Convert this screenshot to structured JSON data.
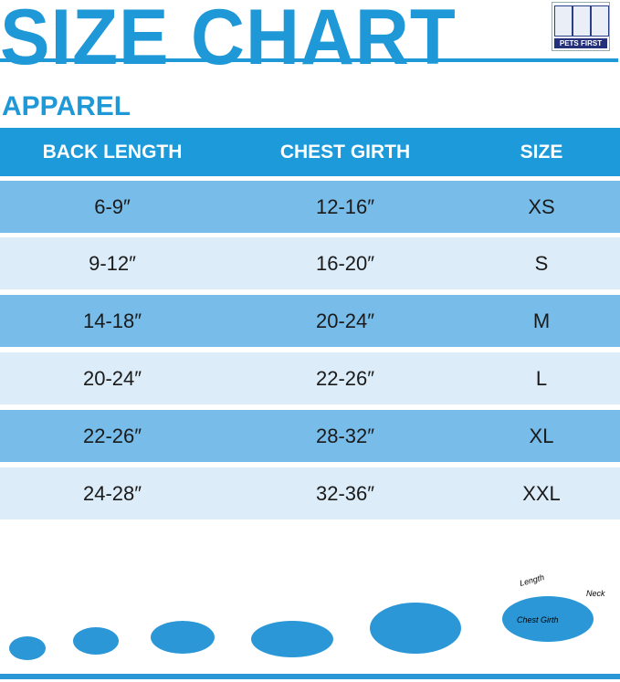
{
  "title": "SIZE CHART",
  "logo": {
    "text": "PETS FIRST"
  },
  "section": "APPAREL",
  "colors": {
    "title": "#1f98d8",
    "header": "#1d9ad9",
    "row_dark": "#78bde9",
    "row_light": "#dcedf9",
    "silhouette": "#2b97d6"
  },
  "table": {
    "headers": [
      "BACK LENGTH",
      "CHEST GIRTH",
      "SIZE"
    ],
    "rows": [
      [
        "6-9″",
        "12-16″",
        "XS"
      ],
      [
        "9-12″",
        "16-20″",
        "S"
      ],
      [
        "14-18″",
        "20-24″",
        "M"
      ],
      [
        "20-24″",
        "22-26″",
        "L"
      ],
      [
        "22-26″",
        "28-32″",
        "XL"
      ],
      [
        "24-28″",
        "32-36″",
        "XXL"
      ]
    ]
  },
  "diagram": {
    "length": "Length",
    "chest_girth": "Chest Girth",
    "neck": "Neck"
  }
}
